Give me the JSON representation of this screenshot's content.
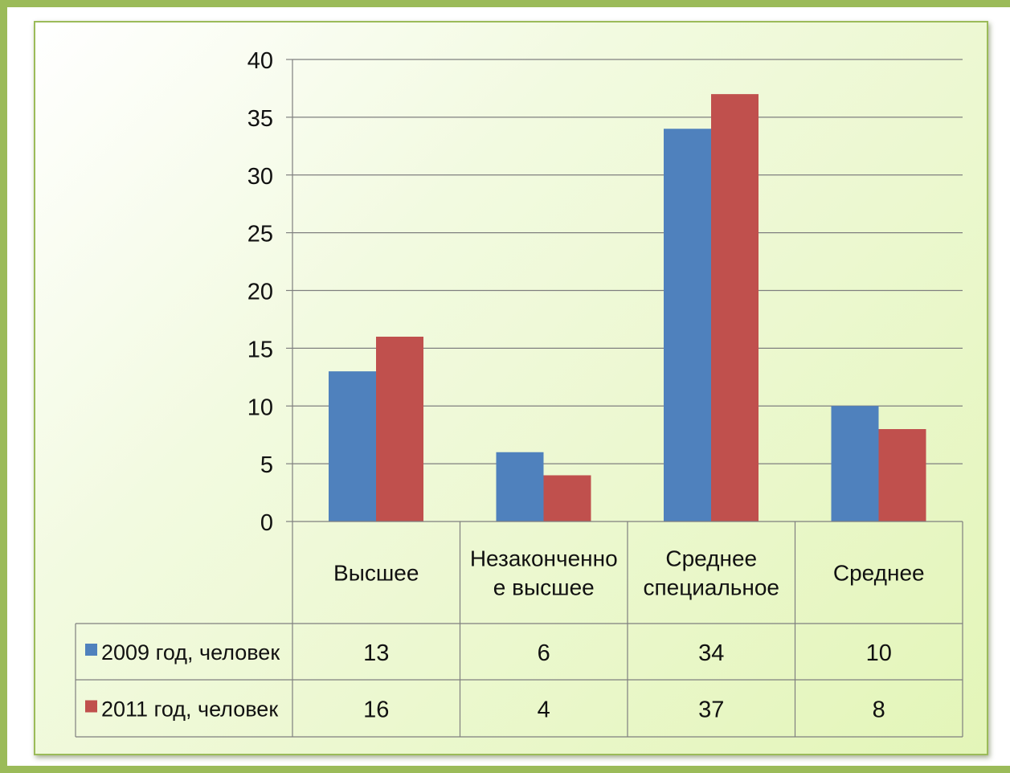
{
  "chart_data": {
    "type": "bar",
    "categories": [
      "Высшее",
      "Незаконченное высшее",
      "Среднее специальное",
      "Среднее"
    ],
    "category_label_lines": [
      [
        "Высшее"
      ],
      [
        "Незаконченно",
        "е высшее"
      ],
      [
        "Среднее",
        "специальное"
      ],
      [
        "Среднее"
      ]
    ],
    "series": [
      {
        "name": "2009 год, человек",
        "color": "#4f81bd",
        "values": [
          13,
          6,
          34,
          10
        ]
      },
      {
        "name": "2011 год, человек",
        "color": "#c0504d",
        "values": [
          16,
          4,
          37,
          8
        ]
      }
    ],
    "ylim": [
      0,
      40
    ],
    "yticks": [
      0,
      5,
      10,
      15,
      20,
      25,
      30,
      35,
      40
    ],
    "grid": true,
    "legend": "data-table"
  }
}
